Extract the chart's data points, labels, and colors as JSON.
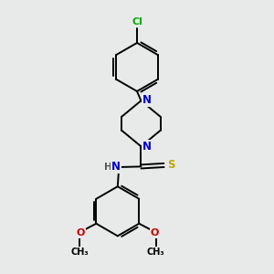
{
  "bg_color": "#e8eaea",
  "atom_colors": {
    "C": "#000000",
    "N": "#0000cc",
    "S": "#bbaa00",
    "O": "#cc0000",
    "Cl": "#00aa00",
    "H": "#555555"
  },
  "bond_color": "#000000",
  "bond_width": 1.4,
  "fig_size": [
    3.0,
    3.0
  ],
  "dpi": 100
}
